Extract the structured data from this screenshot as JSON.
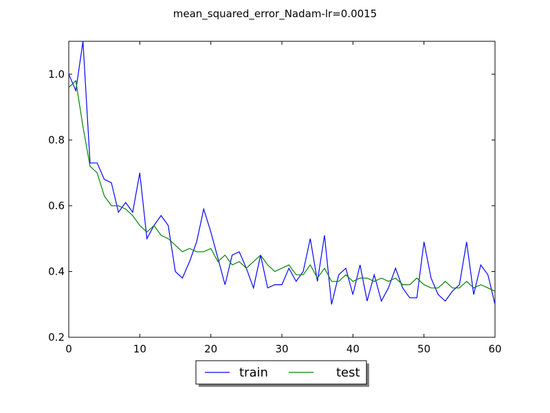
{
  "chart_data": {
    "type": "line",
    "title": "mean_squared_error_Nadam-lr=0.0015",
    "xlabel": "",
    "ylabel": "",
    "xlim": [
      0,
      60
    ],
    "ylim": [
      0.2,
      1.1
    ],
    "xticks": [
      "0",
      "10",
      "20",
      "30",
      "40",
      "50",
      "60"
    ],
    "yticks": [
      "0.2",
      "0.4",
      "0.6",
      "0.8",
      "1.0"
    ],
    "grid": false,
    "legend_position": "bottom-center, below plot",
    "x": [
      0,
      1,
      2,
      3,
      4,
      5,
      6,
      7,
      8,
      9,
      10,
      11,
      12,
      13,
      14,
      15,
      16,
      17,
      18,
      19,
      20,
      21,
      22,
      23,
      24,
      25,
      26,
      27,
      28,
      29,
      30,
      31,
      32,
      33,
      34,
      35,
      36,
      37,
      38,
      39,
      40,
      41,
      42,
      43,
      44,
      45,
      46,
      47,
      48,
      49,
      50,
      51,
      52,
      53,
      54,
      55,
      56,
      57,
      58,
      59,
      60
    ],
    "series": [
      {
        "name": "train",
        "color": "#0000ff",
        "values": [
          1.0,
          0.95,
          1.1,
          0.73,
          0.73,
          0.68,
          0.67,
          0.58,
          0.61,
          0.58,
          0.7,
          0.5,
          0.54,
          0.57,
          0.54,
          0.4,
          0.38,
          0.43,
          0.49,
          0.59,
          0.52,
          0.44,
          0.36,
          0.45,
          0.46,
          0.41,
          0.35,
          0.45,
          0.35,
          0.36,
          0.36,
          0.41,
          0.37,
          0.4,
          0.5,
          0.37,
          0.51,
          0.3,
          0.39,
          0.41,
          0.33,
          0.42,
          0.31,
          0.39,
          0.31,
          0.35,
          0.41,
          0.35,
          0.32,
          0.32,
          0.49,
          0.38,
          0.33,
          0.31,
          0.34,
          0.36,
          0.49,
          0.33,
          0.42,
          0.39,
          0.3
        ]
      },
      {
        "name": "test",
        "color": "#008000",
        "values": [
          0.96,
          0.98,
          0.84,
          0.72,
          0.7,
          0.63,
          0.6,
          0.6,
          0.59,
          0.57,
          0.54,
          0.52,
          0.54,
          0.51,
          0.5,
          0.48,
          0.46,
          0.47,
          0.46,
          0.46,
          0.47,
          0.43,
          0.45,
          0.42,
          0.43,
          0.41,
          0.43,
          0.45,
          0.42,
          0.4,
          0.41,
          0.42,
          0.39,
          0.39,
          0.42,
          0.38,
          0.41,
          0.37,
          0.37,
          0.39,
          0.37,
          0.38,
          0.38,
          0.37,
          0.38,
          0.37,
          0.38,
          0.36,
          0.36,
          0.38,
          0.36,
          0.35,
          0.35,
          0.37,
          0.35,
          0.35,
          0.37,
          0.35,
          0.36,
          0.35,
          0.34
        ]
      }
    ]
  }
}
